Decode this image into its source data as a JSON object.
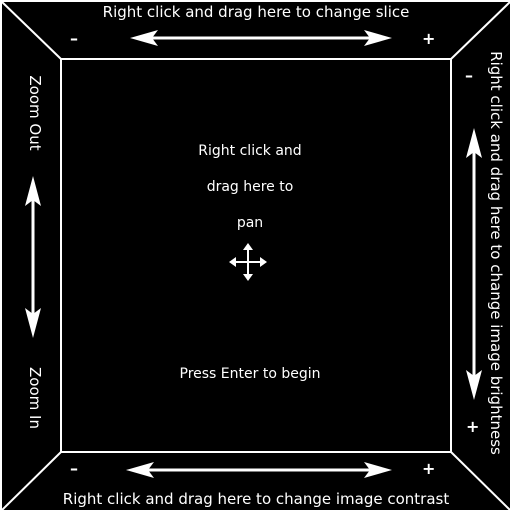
{
  "top_zone": {
    "label": "Right click and drag here to change slice",
    "minus": "–",
    "plus": "+",
    "icon": "double-horizontal-arrow-icon"
  },
  "bottom_zone": {
    "label": "Right click and drag here to change image contrast",
    "minus": "–",
    "plus": "+",
    "icon": "double-horizontal-arrow-icon"
  },
  "left_zone": {
    "top_label": "Zoom Out",
    "bottom_label": "Zoom In",
    "icon": "double-vertical-arrow-icon"
  },
  "right_zone": {
    "label": "Right click and drag here to change image brightness",
    "minus": "–",
    "plus": "+",
    "icon": "double-vertical-arrow-icon"
  },
  "center_zone": {
    "pan_line1": "Right click and",
    "pan_line2": "drag here to",
    "pan_line3": "pan",
    "icon": "move-cross-arrows-icon",
    "prompt": "Press Enter to begin"
  },
  "colors": {
    "background": "#000000",
    "foreground": "#ffffff"
  }
}
